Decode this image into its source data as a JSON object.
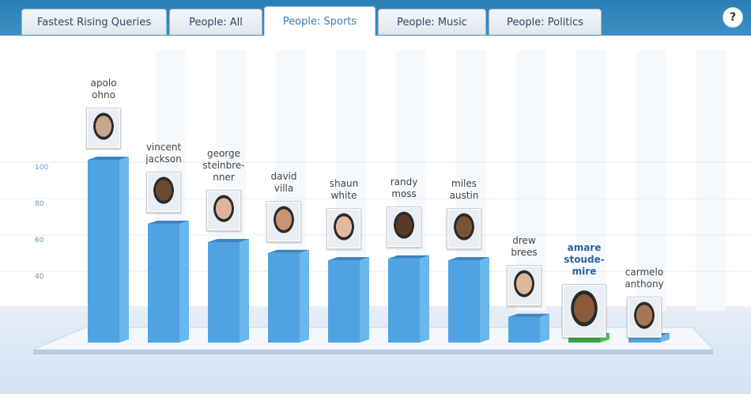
{
  "tabs": [
    {
      "label": "Fastest Rising Queries"
    },
    {
      "label": "People: All"
    },
    {
      "label": "People: Sports"
    },
    {
      "label": "People: Music"
    },
    {
      "label": "People: Politics"
    }
  ],
  "active_tab": 2,
  "help_label": "?",
  "colors": {
    "bar": "#4fa3e0",
    "bar_side": "#6ab7ee",
    "bar_top": "#3a84c2",
    "highlight": "#36a845",
    "tab_bar": "#2a7fb6",
    "label_highlight": "#2a63a8"
  },
  "chart_data": {
    "type": "bar",
    "y_ticks": [
      100,
      80,
      60,
      40
    ],
    "ylim": [
      0,
      100
    ],
    "grid": true,
    "categories": [
      "apolo\nohno",
      "vincent\njackson",
      "george\nsteinbre-\nnner",
      "david\nvilla",
      "shaun\nwhite",
      "randy\nmoss",
      "miles\naustin",
      "drew\nbrees",
      "amare\nstoude-\nmire",
      "carmelo\nanthony"
    ],
    "values": [
      100,
      65,
      55,
      49,
      45,
      46,
      45,
      14,
      3,
      3
    ],
    "highlighted_index": 8,
    "photo_icons": [
      "photo-apolo-ohno-icon",
      "photo-vincent-jackson-icon",
      "photo-george-steinbrenner-icon",
      "photo-david-villa-icon",
      "photo-shaun-white-icon",
      "photo-randy-moss-icon",
      "photo-miles-austin-icon",
      "photo-drew-brees-icon",
      "photo-amare-stoudemire-icon",
      "photo-carmelo-anthony-icon"
    ]
  }
}
